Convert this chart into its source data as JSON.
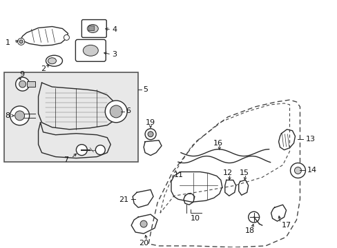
{
  "bg_color": "#ffffff",
  "line_color": "#2a2a2a",
  "label_color": "#111111",
  "box_bg": "#e0e0e0",
  "fig_width": 4.89,
  "fig_height": 3.6,
  "dpi": 100
}
